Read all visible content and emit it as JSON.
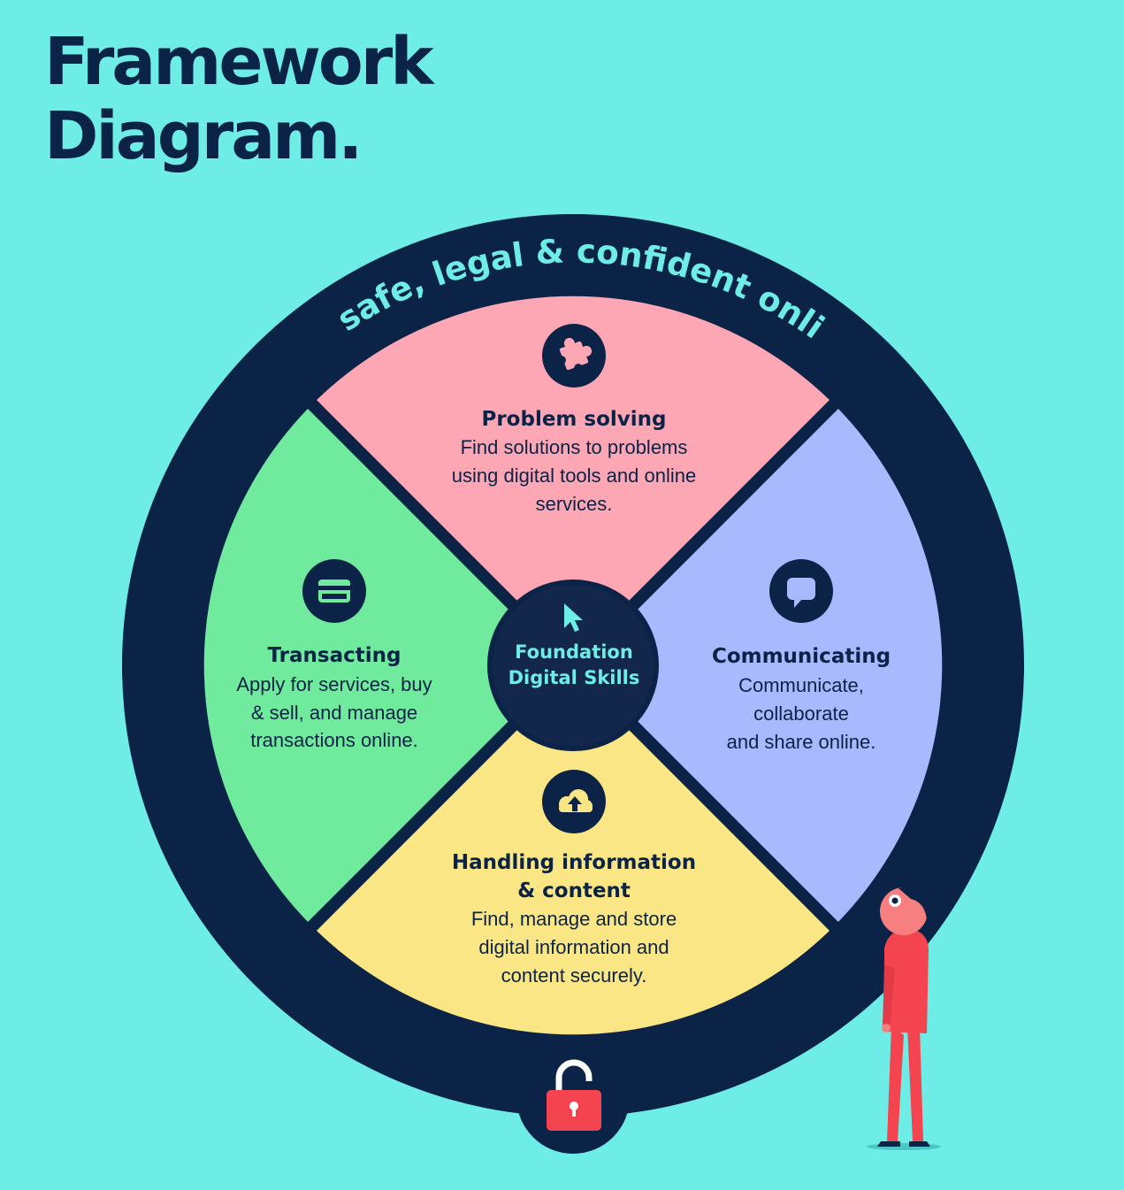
{
  "title": {
    "line1": "Framework",
    "line2": "Diagram."
  },
  "ring_label": "Be safe, legal & confident online",
  "center": {
    "line1": "Foundation",
    "line2": "Digital Skills",
    "icon": "cursor-icon"
  },
  "segments": {
    "problem_solving": {
      "title": "Problem solving",
      "body": [
        "Find solutions to problems",
        "using digital tools and online",
        "services."
      ],
      "icon": "puzzle-icon",
      "color": "#fda6b4"
    },
    "communicating": {
      "title": "Communicating",
      "body": [
        "Communicate,",
        "collaborate",
        "and share online."
      ],
      "icon": "speech-bubble-icon",
      "color": "#a9b9fd"
    },
    "handling": {
      "title": [
        "Handling information",
        "& content"
      ],
      "body": [
        "Find, manage and store",
        "digital information and",
        "content securely."
      ],
      "icon": "cloud-upload-icon",
      "color": "#fae684"
    },
    "transacting": {
      "title": "Transacting",
      "body": [
        "Apply for services, buy",
        "& sell, and manage",
        "transactions online."
      ],
      "icon": "credit-card-icon",
      "color": "#70eb9e"
    }
  },
  "lock_icon": "padlock-open-icon",
  "figure_icon": "person-figure-icon",
  "colors": {
    "background": "#6eece6",
    "navy": "#0b2346",
    "center_fill": "#13264b",
    "accent_red": "#f4444f"
  }
}
